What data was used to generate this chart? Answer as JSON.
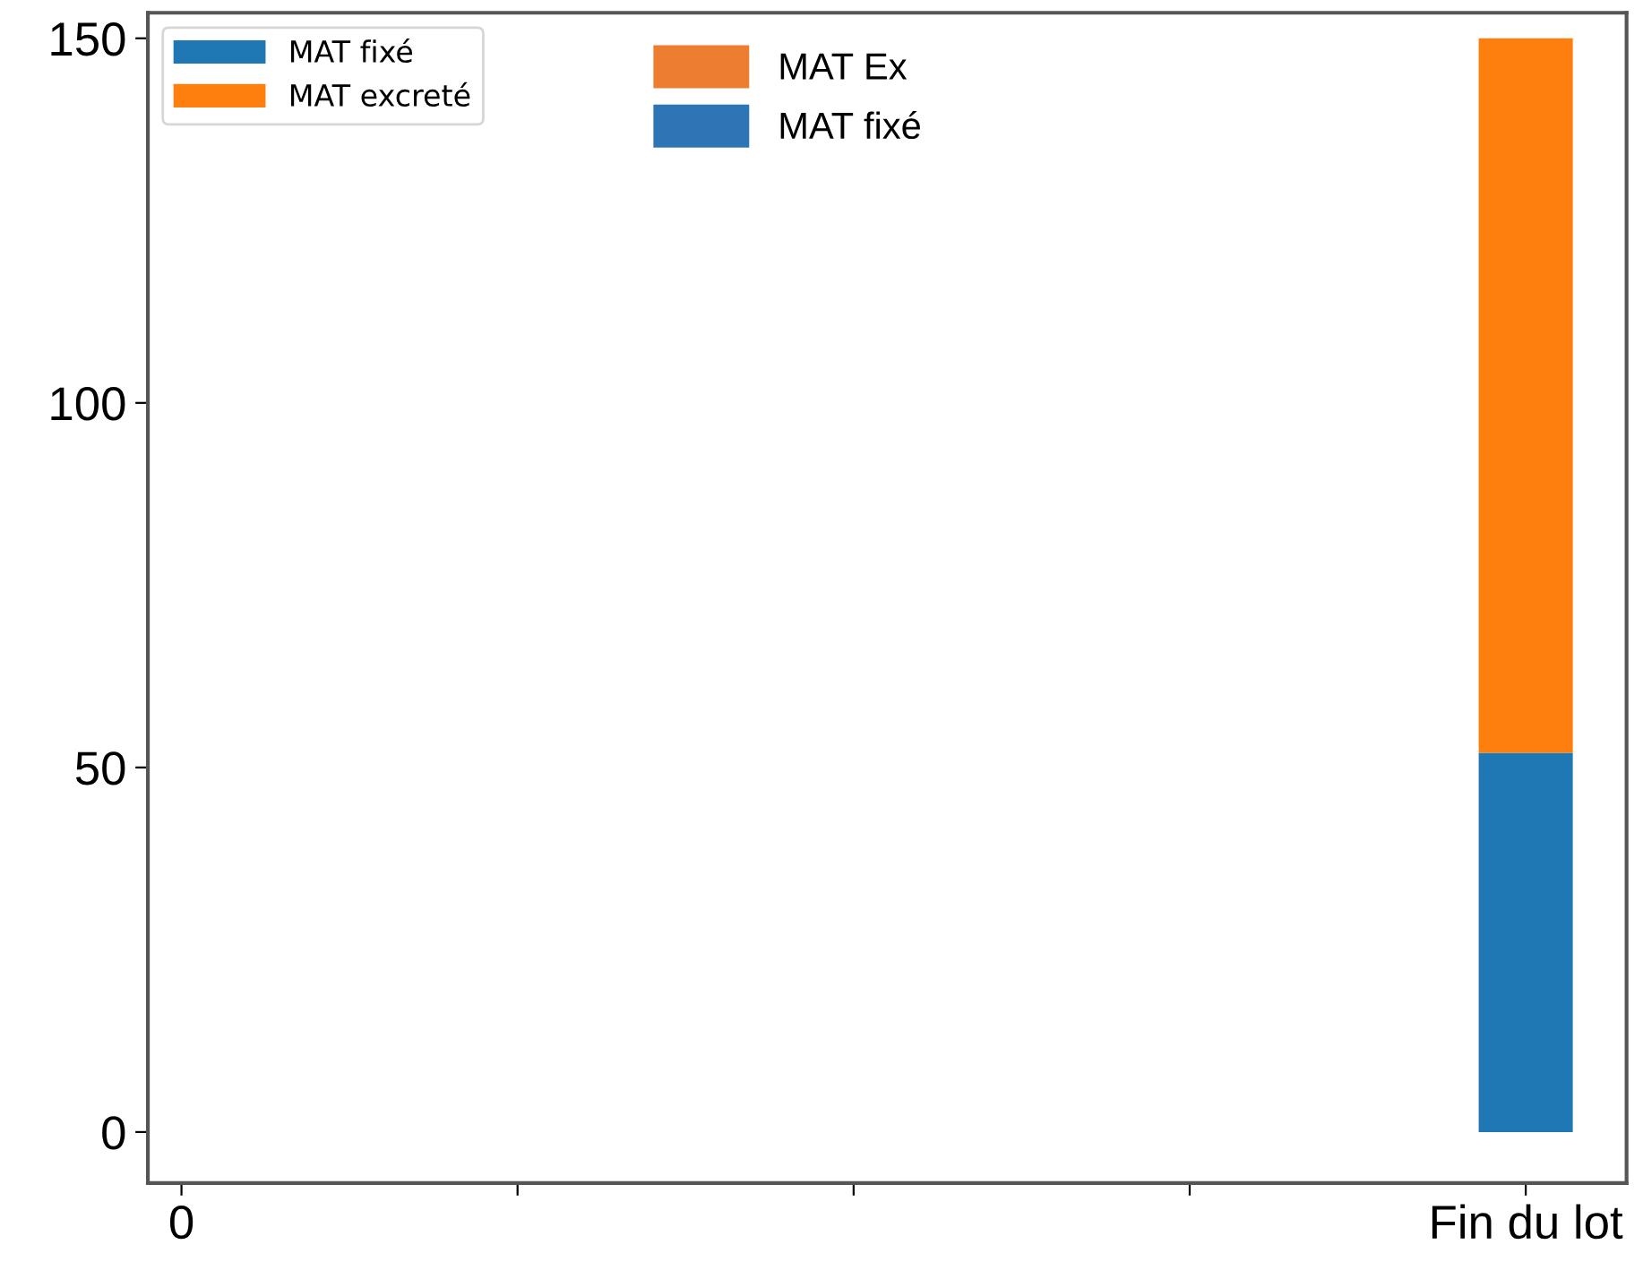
{
  "chart_data": {
    "type": "bar",
    "stacked": true,
    "categories": [
      "0",
      null,
      null,
      null,
      "Fin du lot"
    ],
    "series": [
      {
        "name": "MAT fixé",
        "color": "#1f77b4",
        "values": [
          null,
          null,
          null,
          null,
          52
        ]
      },
      {
        "name": "MAT excreté",
        "color": "#ff7f0e",
        "values": [
          null,
          null,
          null,
          null,
          98
        ]
      },
      {
        "name": "MAT Ex",
        "color": "#ed7d31",
        "values": [
          null,
          null,
          null,
          null,
          null
        ]
      },
      {
        "name": "MAT fixé",
        "color": "#2e75b6",
        "values": [
          null,
          null,
          null,
          null,
          null
        ]
      }
    ],
    "ylim": [
      -7,
      153.5
    ],
    "yticks": [
      0,
      50,
      100,
      150
    ],
    "grid": false,
    "legend": "top left"
  }
}
